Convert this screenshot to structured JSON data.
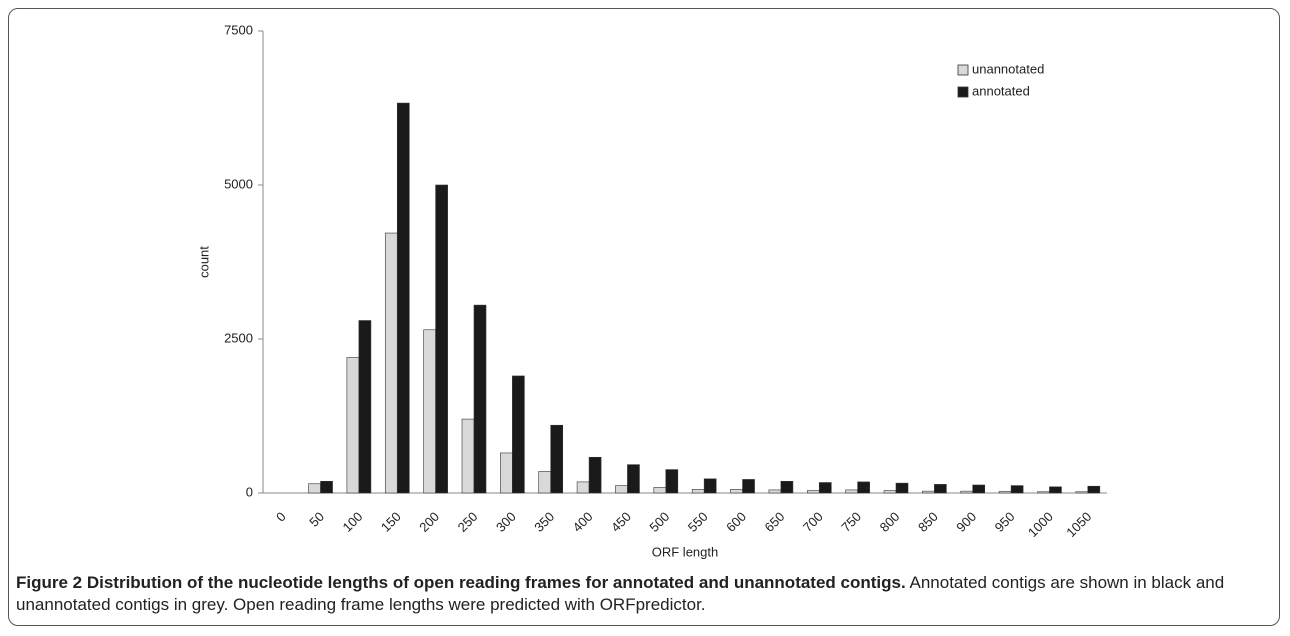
{
  "chart_data": {
    "type": "bar",
    "x_label": "ORF length",
    "y_label": "count",
    "categories": [
      "0",
      "50",
      "100",
      "150",
      "200",
      "250",
      "300",
      "350",
      "400",
      "450",
      "500",
      "550",
      "600",
      "650",
      "700",
      "750",
      "800",
      "850",
      "900",
      "950",
      "1000",
      "1050"
    ],
    "series": [
      {
        "name": "unannotated",
        "color": "#d9d9d9",
        "values": [
          0,
          150,
          2200,
          4220,
          2650,
          1200,
          650,
          350,
          180,
          120,
          90,
          60,
          60,
          50,
          40,
          50,
          40,
          30,
          30,
          25,
          20,
          20
        ]
      },
      {
        "name": "annotated",
        "color": "#1a1a1a",
        "values": [
          0,
          190,
          2800,
          6330,
          5000,
          3050,
          1900,
          1100,
          580,
          460,
          380,
          230,
          220,
          190,
          170,
          180,
          160,
          140,
          130,
          120,
          100,
          110
        ]
      }
    ],
    "ylim": [
      0,
      7500
    ],
    "yticks": [
      0,
      2500,
      5000,
      7500
    ],
    "grid": false,
    "legend": "top-right",
    "caption_title": "Figure 2 Distribution of the nucleotide lengths of open reading frames for annotated and unannotated contigs.",
    "caption_text": "Annotated contigs are shown in black and unannotated contigs in grey. Open reading frame lengths were predicted with ORFpredictor."
  }
}
